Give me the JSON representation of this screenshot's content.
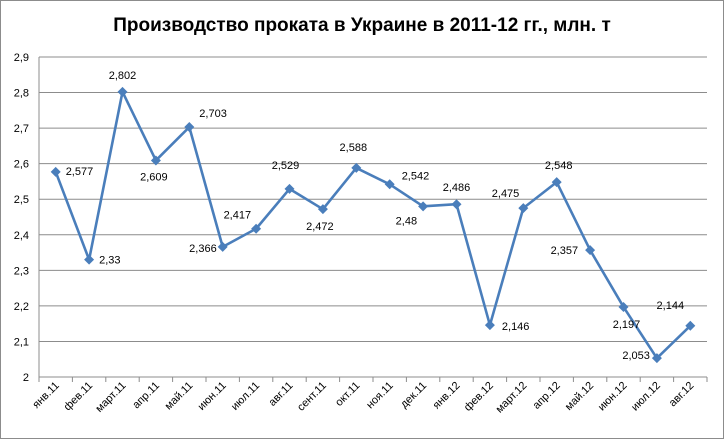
{
  "chart_data": {
    "type": "line",
    "title": "Производство проката в Украине в 2011-12 гг., млн. т",
    "xlabel": "",
    "ylabel": "",
    "ylim": [
      2,
      2.9
    ],
    "yticks": [
      "2",
      "2,1",
      "2,2",
      "2,3",
      "2,4",
      "2,5",
      "2,6",
      "2,7",
      "2,8",
      "2,9"
    ],
    "categories": [
      "янв.11",
      "фев.11",
      "март.11",
      "апр.11",
      "май.11",
      "июн.11",
      "июл.11",
      "авг.11",
      "сент.11",
      "окт.11",
      "ноя.11",
      "дек.11",
      "янв.12",
      "фев.12",
      "март.12",
      "апр.12",
      "май.12",
      "июн.12",
      "июл.12",
      "авг.12"
    ],
    "series": [
      {
        "name": "",
        "color": "#4a7ebb",
        "values": [
          2.577,
          2.33,
          2.802,
          2.609,
          2.703,
          2.366,
          2.417,
          2.529,
          2.472,
          2.588,
          2.542,
          2.48,
          2.486,
          2.146,
          2.475,
          2.548,
          2.357,
          2.197,
          2.053,
          2.144
        ],
        "labels": [
          "2,577",
          "2,33",
          "2,802",
          "2,609",
          "2,703",
          "2,366",
          "2,417",
          "2,529",
          "2,472",
          "2,588",
          "2,542",
          "2,48",
          "2,486",
          "2,146",
          "2,475",
          "2,548",
          "2,357",
          "2,197",
          "2,053",
          "2,144"
        ]
      }
    ],
    "grid": true,
    "legend": "none",
    "gridline_color": "#8c8c8c"
  }
}
